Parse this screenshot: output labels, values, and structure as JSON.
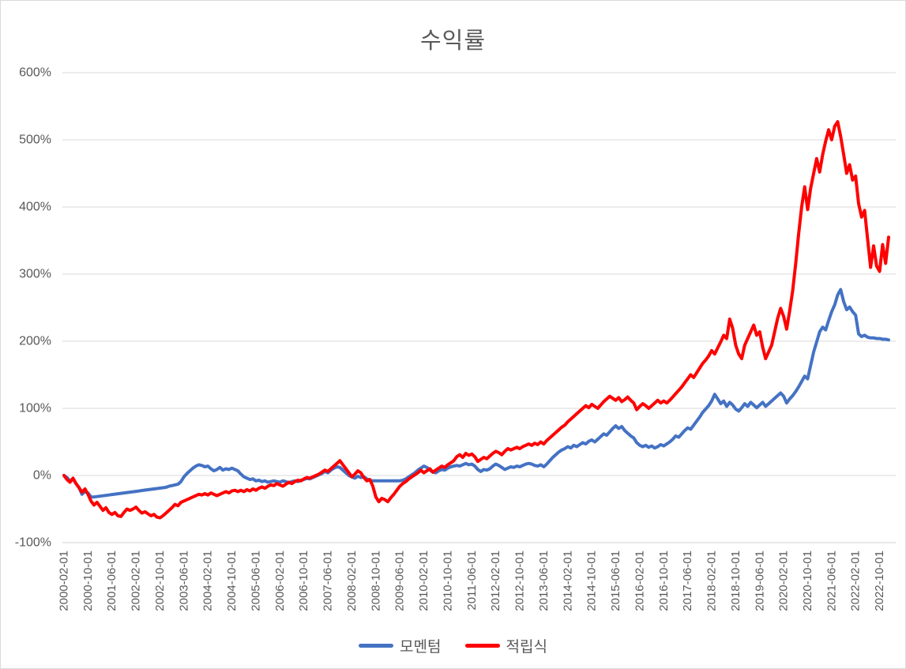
{
  "chart_data": {
    "type": "line",
    "title": "수익률",
    "xlabel": "",
    "ylabel": "",
    "grid": true,
    "legend_position": "bottom-center",
    "x_unit": "month",
    "x_start": "2000-02-01",
    "x_tick_every_n_points": 8,
    "x_tick_labels": [
      "2000-02-01",
      "2000-10-01",
      "2001-06-01",
      "2002-02-01",
      "2002-10-01",
      "2003-06-01",
      "2004-02-01",
      "2004-10-01",
      "2005-06-01",
      "2006-02-01",
      "2006-10-01",
      "2007-06-01",
      "2008-02-01",
      "2008-10-01",
      "2009-06-01",
      "2010-02-01",
      "2010-10-01",
      "2011-06-01",
      "2012-02-01",
      "2012-10-01",
      "2013-06-01",
      "2014-02-01",
      "2014-10-01",
      "2015-06-01",
      "2016-02-01",
      "2016-10-01",
      "2017-06-01",
      "2018-02-01",
      "2018-10-01",
      "2019-06-01",
      "2020-02-01",
      "2020-10-01",
      "2021-06-01",
      "2022-02-01",
      "2022-10-01"
    ],
    "ylim": [
      -100,
      600
    ],
    "y_ticks": [
      {
        "label": "600%",
        "value": 600
      },
      {
        "label": "500%",
        "value": 500
      },
      {
        "label": "400%",
        "value": 400
      },
      {
        "label": "300%",
        "value": 300
      },
      {
        "label": "200%",
        "value": 200
      },
      {
        "label": "100%",
        "value": 100
      },
      {
        "label": "0%",
        "value": 0
      },
      {
        "label": "-100%",
        "value": -100
      }
    ],
    "y_value_suffix": "%",
    "series": [
      {
        "name": "모멘텀",
        "slug": "momentum",
        "color": "#4472C4",
        "values": [
          0,
          -3,
          -8,
          -5,
          -12,
          -18,
          -28,
          -24,
          -26,
          -32,
          -32,
          -31.4,
          -30.8,
          -30.2,
          -29.6,
          -29,
          -28.4,
          -27.8,
          -27.2,
          -26.6,
          -26,
          -25.4,
          -24.8,
          -24.2,
          -23.6,
          -23,
          -22.4,
          -21.8,
          -21.2,
          -20.6,
          -20,
          -19.4,
          -18.8,
          -18.2,
          -17.6,
          -16,
          -15,
          -14,
          -13,
          -9,
          -2,
          3,
          7,
          11,
          14,
          16,
          15,
          13,
          14,
          10,
          7,
          9,
          12,
          8,
          10,
          9,
          11,
          9,
          7,
          2,
          -2,
          -4,
          -6,
          -5,
          -8,
          -7,
          -9,
          -8,
          -10,
          -9,
          -8,
          -9,
          -10,
          -8,
          -9,
          -11,
          -9,
          -8,
          -9,
          -7,
          -6,
          -4,
          -5,
          -3,
          -1,
          1,
          3,
          6,
          4,
          8,
          11,
          13,
          12,
          8,
          4,
          0,
          -2,
          -4,
          -1,
          -3,
          -2,
          -5,
          -7,
          -8,
          -8,
          -8,
          -8,
          -8,
          -8,
          -8,
          -8,
          -8,
          -8,
          -7,
          -5,
          -2,
          1,
          4,
          8,
          11,
          14,
          12,
          8,
          5,
          4,
          7,
          9,
          8,
          11,
          13,
          14,
          15,
          14,
          16,
          18,
          16,
          17,
          14,
          9,
          6,
          9,
          8,
          10,
          14,
          17,
          15,
          12,
          9,
          11,
          13,
          12,
          14,
          13,
          15,
          17,
          18,
          17,
          15,
          14,
          16,
          13,
          17,
          22,
          27,
          31,
          35,
          38,
          40,
          43,
          41,
          45,
          43,
          46,
          49,
          47,
          51,
          53,
          50,
          54,
          58,
          62,
          60,
          65,
          70,
          74,
          70,
          73,
          67,
          63,
          59,
          56,
          49,
          45,
          43,
          45,
          42,
          44,
          41,
          43,
          46,
          44,
          47,
          50,
          54,
          59,
          57,
          62,
          67,
          71,
          69,
          75,
          81,
          87,
          94,
          99,
          104,
          111,
          121,
          114,
          107,
          111,
          103,
          109,
          105,
          99,
          96,
          101,
          107,
          103,
          109,
          105,
          101,
          105,
          109,
          103,
          107,
          111,
          115,
          119,
          123,
          118,
          108,
          114,
          119,
          125,
          132,
          140,
          148,
          144,
          164,
          184,
          199,
          214,
          221,
          217,
          231,
          244,
          254,
          269,
          277,
          259,
          247,
          251,
          244,
          239,
          211,
          207,
          209,
          206,
          205,
          205,
          204,
          204,
          203,
          203,
          202
        ]
      },
      {
        "name": "적립식",
        "slug": "installment",
        "color": "#FF0000",
        "values": [
          0,
          -6,
          -10,
          -4,
          -12,
          -18,
          -25,
          -20,
          -28,
          -38,
          -44,
          -40,
          -46,
          -52,
          -48,
          -55,
          -58,
          -55,
          -60,
          -61,
          -55,
          -50,
          -52,
          -50,
          -47,
          -52,
          -56,
          -54,
          -57,
          -60,
          -58,
          -62,
          -63,
          -60,
          -56,
          -52,
          -48,
          -43,
          -45,
          -40,
          -38,
          -36,
          -34,
          -32,
          -30,
          -28,
          -29,
          -27,
          -29,
          -26,
          -28,
          -30,
          -28,
          -26,
          -24,
          -26,
          -23,
          -22,
          -24,
          -22,
          -24,
          -21,
          -23,
          -20,
          -22,
          -19,
          -17,
          -19,
          -16,
          -14,
          -15,
          -12,
          -14,
          -16,
          -13,
          -10,
          -12,
          -9,
          -7,
          -8,
          -5,
          -3,
          -4,
          -2,
          0,
          2,
          5,
          8,
          6,
          10,
          14,
          18,
          22,
          16,
          10,
          4,
          -2,
          2,
          7,
          4,
          -3,
          -8,
          -6,
          -16,
          -32,
          -39,
          -34,
          -36,
          -39,
          -33,
          -28,
          -22,
          -16,
          -12,
          -9,
          -5,
          -2,
          1,
          4,
          8,
          4,
          7,
          10,
          5,
          8,
          11,
          14,
          12,
          16,
          19,
          22,
          28,
          31,
          27,
          33,
          30,
          32,
          28,
          21,
          24,
          27,
          25,
          29,
          33,
          36,
          34,
          31,
          36,
          40,
          38,
          40,
          42,
          40,
          43,
          45,
          47,
          45,
          48,
          46,
          50,
          47,
          52,
          56,
          60,
          64,
          68,
          72,
          75,
          80,
          84,
          88,
          92,
          96,
          100,
          104,
          101,
          106,
          103,
          100,
          105,
          110,
          114,
          118,
          115,
          112,
          116,
          110,
          113,
          117,
          112,
          108,
          98,
          103,
          107,
          104,
          100,
          104,
          108,
          112,
          108,
          111,
          108,
          112,
          117,
          122,
          127,
          132,
          138,
          144,
          150,
          146,
          153,
          160,
          167,
          172,
          178,
          186,
          181,
          190,
          199,
          209,
          204,
          233,
          219,
          194,
          181,
          174,
          194,
          204,
          214,
          224,
          209,
          214,
          191,
          174,
          184,
          194,
          214,
          234,
          249,
          237,
          218,
          245,
          275,
          315,
          360,
          400,
          430,
          396,
          428,
          450,
          472,
          452,
          478,
          498,
          515,
          500,
          520,
          527,
          505,
          478,
          450,
          463,
          440,
          446,
          405,
          385,
          395,
          352,
          310,
          342,
          312,
          304,
          344,
          316,
          355
        ]
      }
    ]
  },
  "colors": {
    "gridline": "#D9D9D9",
    "axis_line": "#D0D0D0",
    "axis_text": "#595959",
    "title_text": "#595959",
    "background": "#FFFFFF",
    "border": "#D9D9D9"
  }
}
